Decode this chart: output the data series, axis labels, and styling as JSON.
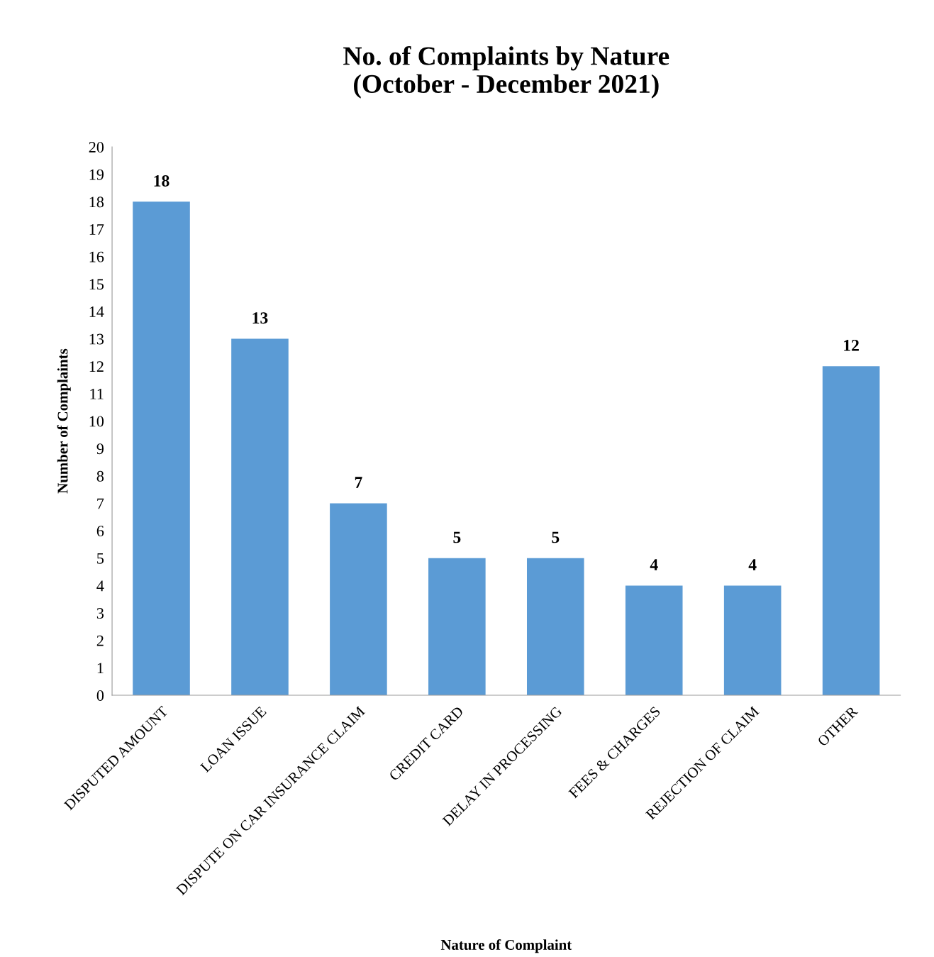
{
  "chart_data": {
    "type": "bar",
    "title": "No. of Complaints by Nature\n(October - December 2021)",
    "xlabel": "Nature of Complaint",
    "ylabel": "Number of Complaints",
    "categories": [
      "DISPUTED AMOUNT",
      "LOAN ISSUE",
      "DISPUTE ON CAR INSURANCE CLAIM",
      "CREDIT CARD",
      "DELAY IN PROCESSING",
      "FEES & CHARGES",
      "REJECTION OF CLAIM",
      "OTHER"
    ],
    "values": [
      18,
      13,
      7,
      5,
      5,
      4,
      4,
      12
    ],
    "color": "#5b9bd5",
    "ylim": [
      0,
      20
    ],
    "yticks": [
      0,
      1,
      2,
      3,
      4,
      5,
      6,
      7,
      8,
      9,
      10,
      11,
      12,
      13,
      14,
      15,
      16,
      17,
      18,
      19,
      20
    ],
    "grid": false,
    "legend": false,
    "data_labels": true
  }
}
